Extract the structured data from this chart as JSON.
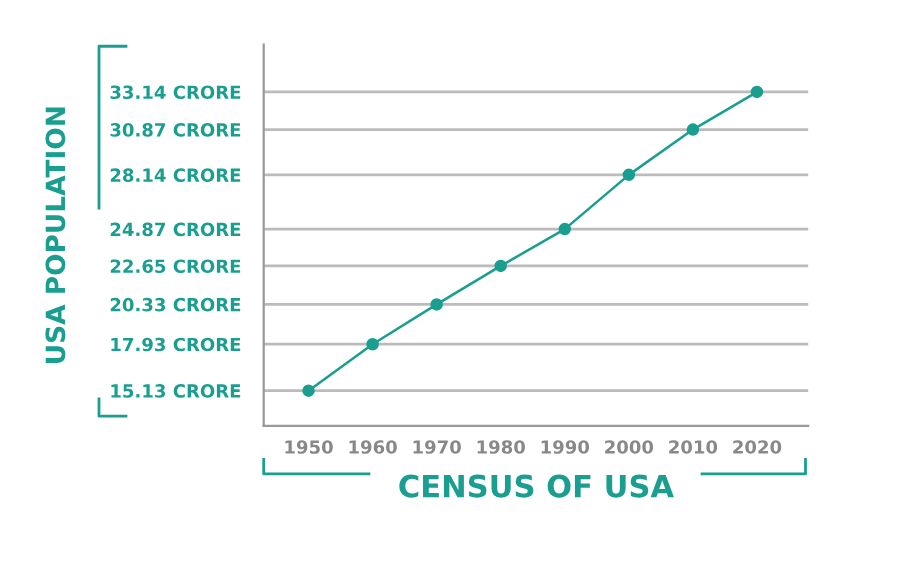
{
  "chart_data": {
    "type": "line",
    "xlabel": "CENSUS OF USA",
    "ylabel": "USA POPULATION",
    "x": [
      1950,
      1960,
      1970,
      1980,
      1990,
      2000,
      2010,
      2020
    ],
    "series": [
      {
        "color": "#1a9e8f",
        "values": [
          15.13,
          17.93,
          20.33,
          22.65,
          24.87,
          28.14,
          30.87,
          33.14
        ]
      }
    ],
    "xlim": [
      1943,
      2028
    ],
    "xticks": [
      1950,
      1960,
      1970,
      1980,
      1990,
      2000,
      2010,
      2020
    ],
    "ylim": [
      13,
      36
    ],
    "yticks": [
      {
        "value": 15.13,
        "label": "15.13 CRORE"
      },
      {
        "value": 17.93,
        "label": "17.93 CRORE"
      },
      {
        "value": 20.33,
        "label": "20.33 CRORE"
      },
      {
        "value": 22.65,
        "label": "22.65 CRORE"
      },
      {
        "value": 24.87,
        "label": "24.87 CRORE"
      },
      {
        "value": 28.14,
        "label": "28.14 CRORE"
      },
      {
        "value": 30.87,
        "label": "30.87 CRORE"
      },
      {
        "value": 33.14,
        "label": "33.14 CRORE"
      }
    ],
    "grid": "y",
    "marker": "circle",
    "line_style": "solid"
  }
}
